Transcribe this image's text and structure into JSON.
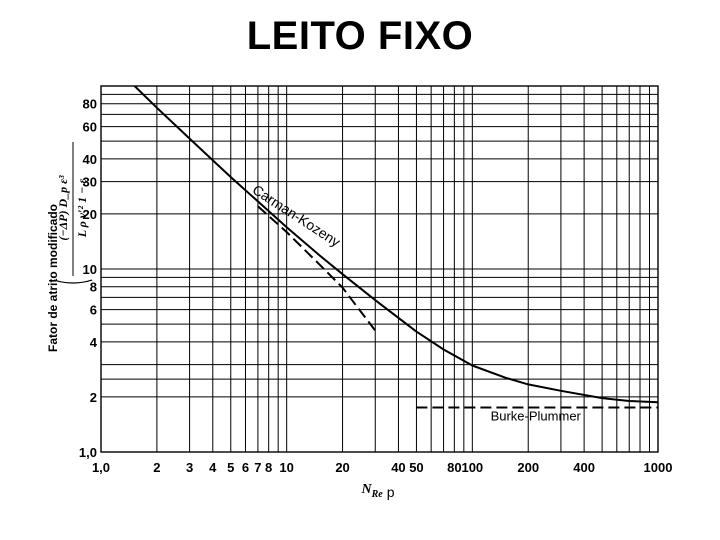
{
  "title": "LEITO FIXO",
  "chart_data": {
    "type": "line",
    "xscale": "log",
    "yscale": "log",
    "xlim": [
      1,
      1000
    ],
    "ylim": [
      1,
      100
    ],
    "xlabel": "N_Re p",
    "xlabel_main": "N",
    "xlabel_sub": "Re",
    "xlabel_after": "p",
    "ylabel": "Fator de atrito modificado",
    "ylabel_formula_num": "(−ΔP)  D_p    ε³",
    "ylabel_formula_den": "L ρ v′²   1 − ε",
    "x_ticks": [
      {
        "v": 1,
        "label": "1,0"
      },
      {
        "v": 2,
        "label": "2"
      },
      {
        "v": 3,
        "label": "3"
      },
      {
        "v": 4,
        "label": "4"
      },
      {
        "v": 5,
        "label": "5"
      },
      {
        "v": 6,
        "label": "6"
      },
      {
        "v": 7,
        "label": "7"
      },
      {
        "v": 8,
        "label": "8"
      },
      {
        "v": 10,
        "label": "10"
      },
      {
        "v": 20,
        "label": "20"
      },
      {
        "v": 40,
        "label": "40"
      },
      {
        "v": 50,
        "label": "50"
      },
      {
        "v": 80,
        "label": "80"
      },
      {
        "v": 100,
        "label": "100"
      },
      {
        "v": 200,
        "label": "200"
      },
      {
        "v": 400,
        "label": "400"
      },
      {
        "v": 1000,
        "label": "1000"
      }
    ],
    "y_ticks": [
      {
        "v": 1,
        "label": "1,0"
      },
      {
        "v": 2,
        "label": "2"
      },
      {
        "v": 4,
        "label": "4"
      },
      {
        "v": 6,
        "label": "6"
      },
      {
        "v": 8,
        "label": "8"
      },
      {
        "v": 10,
        "label": "10"
      },
      {
        "v": 20,
        "label": "20"
      },
      {
        "v": 30,
        "label": "30"
      },
      {
        "v": 40,
        "label": "40"
      },
      {
        "v": 60,
        "label": "60"
      },
      {
        "v": 80,
        "label": "80"
      }
    ],
    "x_grid": [
      1,
      2,
      3,
      4,
      5,
      6,
      7,
      8,
      9,
      10,
      20,
      30,
      40,
      50,
      60,
      70,
      80,
      90,
      100,
      200,
      300,
      400,
      500,
      600,
      700,
      800,
      900,
      1000
    ],
    "y_grid": [
      1,
      2,
      2.5,
      3,
      4,
      5,
      6,
      7,
      8,
      9,
      10,
      20,
      30,
      40,
      50,
      60,
      70,
      80,
      90,
      100
    ],
    "series": [
      {
        "name": "",
        "style": "solid",
        "x": [
          1,
          2,
          3,
          5,
          7,
          10,
          15,
          20,
          30,
          50,
          70,
          100,
          150,
          200,
          300,
          500,
          700,
          1000
        ],
        "y": [
          151,
          76,
          51.6,
          31.8,
          23.4,
          16.9,
          11.9,
          9.37,
          6.75,
          4.55,
          3.63,
          2.97,
          2.55,
          2.34,
          2.16,
          1.97,
          1.9,
          1.87
        ]
      },
      {
        "name": "Carman-Kozeny",
        "style": "dashed",
        "x": [
          7,
          10,
          15,
          20,
          30
        ],
        "y": [
          22.0,
          15.9,
          10.6,
          7.9,
          4.6
        ]
      },
      {
        "name": "Burke-Plummer",
        "style": "dashed",
        "x": [
          50,
          1000
        ],
        "y": [
          1.75,
          1.75
        ]
      }
    ],
    "annotations": [
      {
        "text": "Carman-Kozeny",
        "x": 12,
        "y": 18
      },
      {
        "text": "Burke-Plummer",
        "x": 180,
        "y": 1.45
      }
    ]
  }
}
